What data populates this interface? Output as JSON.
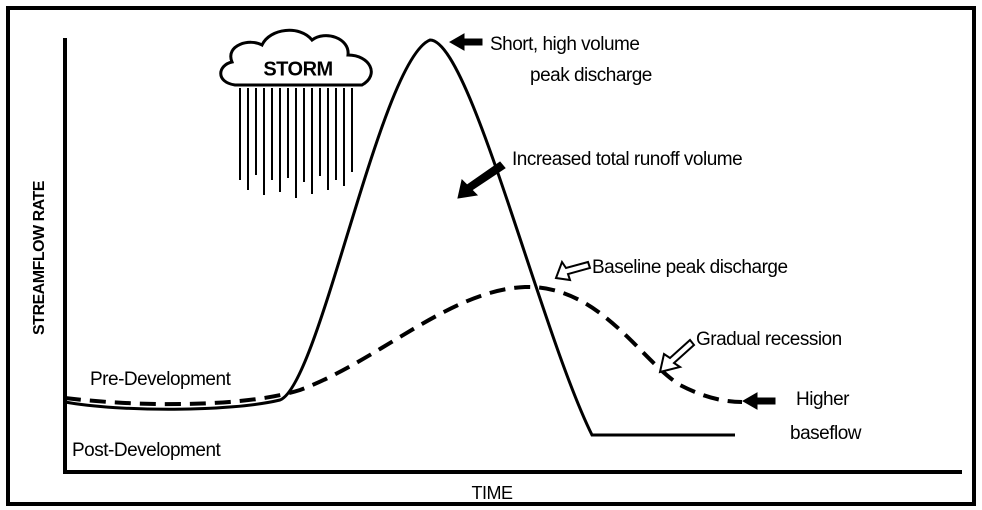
{
  "title_axes": {
    "y_label": "STREAMFLOW RATE",
    "x_label": "TIME"
  },
  "storm": "STORM",
  "annotations": {
    "peak": [
      "Short, high volume",
      "peak discharge"
    ],
    "runoff": "Increased total runoff volume",
    "baseline": "Baseline peak discharge",
    "recession": "Gradual recession",
    "baseflow": [
      "Higher",
      "baseflow"
    ]
  },
  "curves": {
    "pre": "Pre-Development",
    "post": "Post-Development"
  }
}
